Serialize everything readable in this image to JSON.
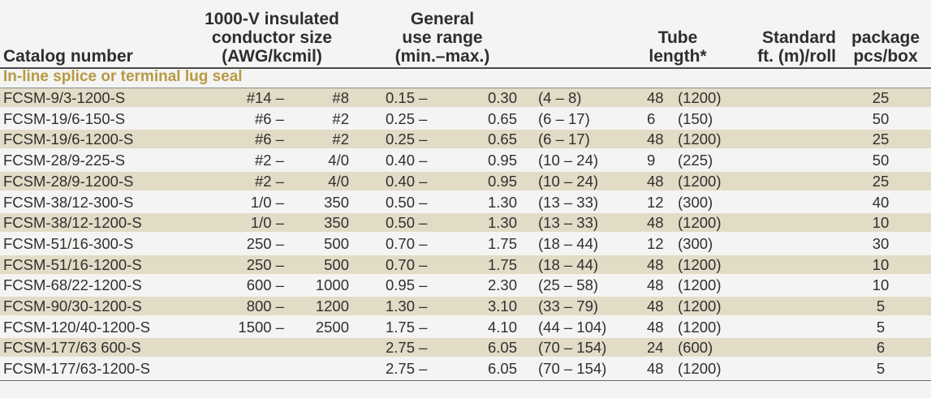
{
  "headers": {
    "catalog": [
      "Catalog number"
    ],
    "conductor": [
      "1000-V insulated",
      "conductor size",
      "(AWG/kcmil)"
    ],
    "range": [
      "General",
      "use range",
      "(min.–max.)"
    ],
    "tube": [
      "Tube",
      "length*"
    ],
    "roll": [
      "Standard",
      "ft. (m)/roll"
    ],
    "pkg": [
      "package",
      "pcs/box"
    ]
  },
  "section_title": "In-line splice or terminal lug seal",
  "colors": {
    "shade": "#e2dbc6",
    "section": "#b79a45",
    "rule": "#4a4a4a"
  },
  "rows": [
    {
      "catalog": "FCSM-9/3-1200-S",
      "awg_min": "#14 –",
      "awg_max": "#8",
      "in_min": "0.15 –",
      "in_max": "0.30",
      "mm": "(4 – 8)",
      "ft": "48",
      "m": "(1200)",
      "pcs": "25"
    },
    {
      "catalog": "FCSM-19/6-150-S",
      "awg_min": "#6 –",
      "awg_max": "#2",
      "in_min": "0.25 –",
      "in_max": "0.65",
      "mm": "(6 – 17)",
      "ft": "6",
      "m": "(150)",
      "pcs": "50"
    },
    {
      "catalog": "FCSM-19/6-1200-S",
      "awg_min": "#6 –",
      "awg_max": "#2",
      "in_min": "0.25 –",
      "in_max": "0.65",
      "mm": "(6 – 17)",
      "ft": "48",
      "m": "(1200)",
      "pcs": "25"
    },
    {
      "catalog": "FCSM-28/9-225-S",
      "awg_min": "#2 –",
      "awg_max": "4/0",
      "in_min": "0.40 –",
      "in_max": "0.95",
      "mm": "(10 – 24)",
      "ft": "9",
      "m": "(225)",
      "pcs": "50"
    },
    {
      "catalog": "FCSM-28/9-1200-S",
      "awg_min": "#2 –",
      "awg_max": "4/0",
      "in_min": "0.40 –",
      "in_max": "0.95",
      "mm": "(10 – 24)",
      "ft": "48",
      "m": "(1200)",
      "pcs": "25"
    },
    {
      "catalog": "FCSM-38/12-300-S",
      "awg_min": "1/0 –",
      "awg_max": "350",
      "in_min": "0.50 –",
      "in_max": "1.30",
      "mm": "(13 – 33)",
      "ft": "12",
      "m": "(300)",
      "pcs": "40"
    },
    {
      "catalog": "FCSM-38/12-1200-S",
      "awg_min": "1/0 –",
      "awg_max": "350",
      "in_min": "0.50 –",
      "in_max": "1.30",
      "mm": "(13 – 33)",
      "ft": "48",
      "m": "(1200)",
      "pcs": "10"
    },
    {
      "catalog": "FCSM-51/16-300-S",
      "awg_min": "250 –",
      "awg_max": "500",
      "in_min": "0.70 –",
      "in_max": "1.75",
      "mm": "(18 – 44)",
      "ft": "12",
      "m": "(300)",
      "pcs": "30"
    },
    {
      "catalog": "FCSM-51/16-1200-S",
      "awg_min": "250 –",
      "awg_max": "500",
      "in_min": "0.70 –",
      "in_max": "1.75",
      "mm": "(18 – 44)",
      "ft": "48",
      "m": "(1200)",
      "pcs": "10"
    },
    {
      "catalog": "FCSM-68/22-1200-S",
      "awg_min": "600 –",
      "awg_max": "1000",
      "in_min": "0.95 –",
      "in_max": "2.30",
      "mm": "(25 – 58)",
      "ft": "48",
      "m": "(1200)",
      "pcs": "10"
    },
    {
      "catalog": "FCSM-90/30-1200-S",
      "awg_min": "800 –",
      "awg_max": "1200",
      "in_min": "1.30 –",
      "in_max": "3.10",
      "mm": "(33 – 79)",
      "ft": "48",
      "m": "(1200)",
      "pcs": "5"
    },
    {
      "catalog": "FCSM-120/40-1200-S",
      "awg_min": "1500 –",
      "awg_max": "2500",
      "in_min": "1.75 –",
      "in_max": "4.10",
      "mm": "(44 – 104)",
      "ft": "48",
      "m": "(1200)",
      "pcs": "5"
    },
    {
      "catalog": "FCSM-177/63 600-S",
      "awg_min": "",
      "awg_max": "",
      "in_min": "2.75 –",
      "in_max": "6.05",
      "mm": "(70 – 154)",
      "ft": "24",
      "m": "(600)",
      "pcs": "6"
    },
    {
      "catalog": "FCSM-177/63-1200-S",
      "awg_min": "",
      "awg_max": "",
      "in_min": "2.75 –",
      "in_max": "6.05",
      "mm": "(70 – 154)",
      "ft": "48",
      "m": "(1200)",
      "pcs": "5"
    }
  ]
}
